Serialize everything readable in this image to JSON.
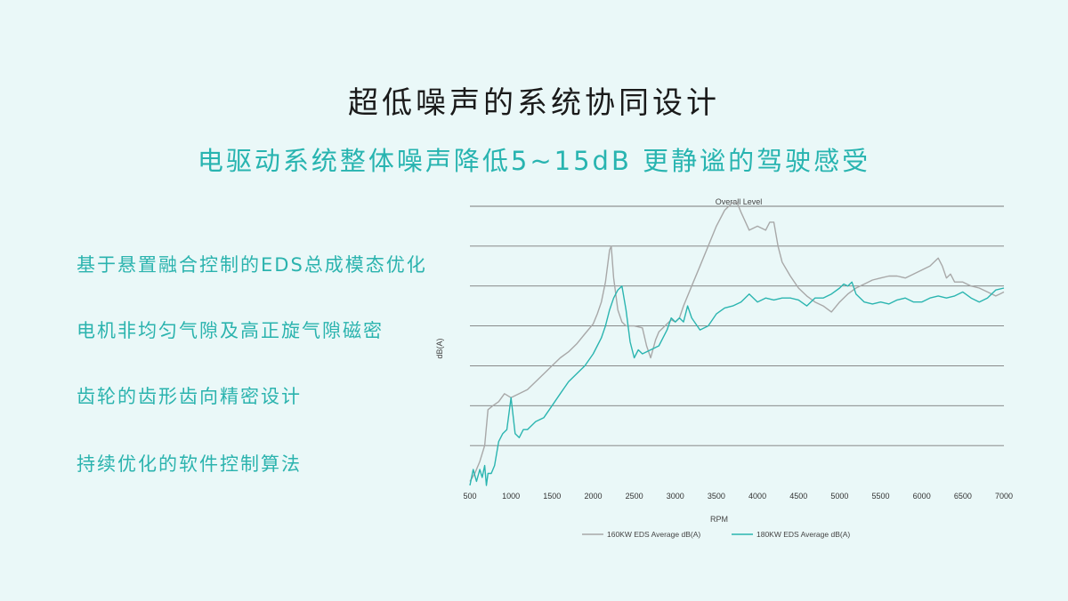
{
  "slide": {
    "title": "超低噪声的系统协同设计",
    "subtitle": "电驱动系统整体噪声降低5~15dB  更静谧的驾驶感受",
    "bullets": [
      "基于悬置融合控制的EDS总成模态优化",
      "电机非均匀气隙及高正旋气隙磁密",
      "齿轮的齿形齿向精密设计",
      "持续优化的软件控制算法"
    ]
  },
  "chart_data": {
    "type": "line",
    "title": "Overall Level",
    "xlabel": "RPM",
    "ylabel": "dB(A)",
    "xlim": [
      500,
      7000
    ],
    "xticks": [
      500,
      1000,
      1500,
      2000,
      2500,
      3000,
      3500,
      4000,
      4500,
      5000,
      5500,
      6000,
      6500,
      7000
    ],
    "ylim": [
      0,
      7
    ],
    "y_gridlines": [
      1,
      2,
      3,
      4,
      5,
      6,
      7
    ],
    "y_tick_labels_shown": false,
    "legend_position": "bottom",
    "series": [
      {
        "name": "160KW EDS Average dB(A)",
        "color": "#a8a8a8",
        "x": [
          500,
          560,
          620,
          680,
          720,
          780,
          850,
          920,
          1000,
          1100,
          1200,
          1300,
          1400,
          1500,
          1600,
          1700,
          1800,
          1900,
          2000,
          2050,
          2100,
          2150,
          2200,
          2220,
          2250,
          2300,
          2350,
          2400,
          2500,
          2600,
          2650,
          2700,
          2760,
          2800,
          2850,
          2900,
          2950,
          3000,
          3050,
          3100,
          3200,
          3300,
          3400,
          3500,
          3600,
          3700,
          3750,
          3800,
          3900,
          4000,
          4100,
          4150,
          4200,
          4250,
          4300,
          4400,
          4500,
          4600,
          4700,
          4800,
          4900,
          5000,
          5100,
          5200,
          5300,
          5400,
          5500,
          5600,
          5700,
          5800,
          5900,
          6000,
          6100,
          6200,
          6250,
          6300,
          6350,
          6400,
          6500,
          6600,
          6700,
          6800,
          6900,
          6950,
          7000
        ],
        "y": [
          0.1,
          0.3,
          0.6,
          1.0,
          1.9,
          2.0,
          2.1,
          2.3,
          2.2,
          2.3,
          2.4,
          2.6,
          2.8,
          3.0,
          3.2,
          3.35,
          3.55,
          3.8,
          4.05,
          4.3,
          4.6,
          5.1,
          5.9,
          6.0,
          5.2,
          4.4,
          4.1,
          4.0,
          4.0,
          3.95,
          3.5,
          3.2,
          3.65,
          3.85,
          3.95,
          4.05,
          4.15,
          4.1,
          4.2,
          4.5,
          5.0,
          5.5,
          6.0,
          6.5,
          6.9,
          7.1,
          7.1,
          6.85,
          6.4,
          6.5,
          6.4,
          6.6,
          6.6,
          6.0,
          5.6,
          5.25,
          4.95,
          4.75,
          4.6,
          4.5,
          4.35,
          4.6,
          4.8,
          4.95,
          5.05,
          5.15,
          5.2,
          5.25,
          5.25,
          5.2,
          5.3,
          5.4,
          5.5,
          5.7,
          5.5,
          5.2,
          5.3,
          5.1,
          5.1,
          5.0,
          4.95,
          4.85,
          4.75,
          4.8,
          4.85
        ]
      },
      {
        "name": "180KW EDS Average dB(A)",
        "color": "#2bb5b0",
        "x": [
          500,
          540,
          580,
          620,
          650,
          680,
          700,
          720,
          760,
          800,
          850,
          900,
          950,
          1000,
          1050,
          1100,
          1150,
          1200,
          1300,
          1400,
          1500,
          1600,
          1700,
          1800,
          1900,
          2000,
          2050,
          2100,
          2150,
          2200,
          2250,
          2300,
          2350,
          2400,
          2450,
          2500,
          2550,
          2600,
          2700,
          2800,
          2900,
          2950,
          3000,
          3050,
          3100,
          3150,
          3200,
          3300,
          3400,
          3500,
          3600,
          3700,
          3800,
          3900,
          4000,
          4100,
          4200,
          4300,
          4400,
          4500,
          4600,
          4700,
          4800,
          4900,
          5000,
          5050,
          5100,
          5150,
          5200,
          5300,
          5400,
          5500,
          5600,
          5700,
          5800,
          5900,
          6000,
          6100,
          6200,
          6300,
          6400,
          6500,
          6600,
          6700,
          6800,
          6900,
          7000
        ],
        "y": [
          0.0,
          0.4,
          0.1,
          0.4,
          0.2,
          0.5,
          0.0,
          0.3,
          0.3,
          0.5,
          1.1,
          1.3,
          1.4,
          2.2,
          1.3,
          1.2,
          1.4,
          1.4,
          1.6,
          1.7,
          2.0,
          2.3,
          2.6,
          2.8,
          3.0,
          3.3,
          3.5,
          3.7,
          4.0,
          4.4,
          4.7,
          4.9,
          5.0,
          4.4,
          3.6,
          3.2,
          3.4,
          3.3,
          3.4,
          3.5,
          3.9,
          4.2,
          4.1,
          4.2,
          4.1,
          4.5,
          4.2,
          3.9,
          4.0,
          4.3,
          4.45,
          4.5,
          4.6,
          4.8,
          4.6,
          4.7,
          4.65,
          4.7,
          4.7,
          4.65,
          4.5,
          4.7,
          4.7,
          4.8,
          4.95,
          5.05,
          5.0,
          5.1,
          4.8,
          4.6,
          4.55,
          4.6,
          4.55,
          4.65,
          4.7,
          4.6,
          4.6,
          4.7,
          4.75,
          4.7,
          4.75,
          4.85,
          4.7,
          4.6,
          4.7,
          4.9,
          4.95
        ]
      }
    ]
  }
}
